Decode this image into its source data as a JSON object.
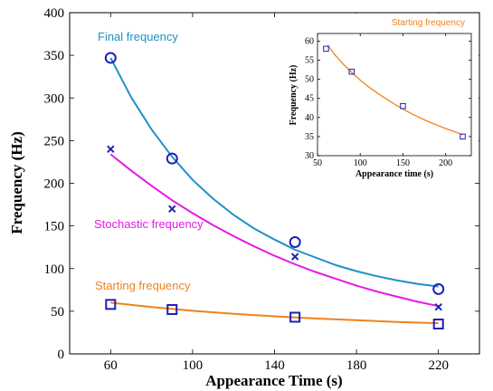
{
  "chart_data": [
    {
      "type": "line",
      "xlabel": "Appearance Time (s)",
      "ylabel": "Frequency (Hz)",
      "xlim": [
        40,
        240
      ],
      "ylim": [
        0,
        400
      ],
      "xticks": [
        60,
        100,
        140,
        180,
        220
      ],
      "yticks": [
        0,
        50,
        100,
        150,
        200,
        250,
        300,
        350,
        400
      ],
      "grid": false,
      "series": [
        {
          "name": "Final frequency",
          "color": "#1f8fc9",
          "marker": "circle",
          "points": [
            [
              60,
              347
            ],
            [
              90,
              229
            ],
            [
              150,
              131
            ],
            [
              220,
              76
            ]
          ],
          "curve": [
            [
              60,
              347
            ],
            [
              70,
              301
            ],
            [
              80,
              263
            ],
            [
              90,
              231
            ],
            [
              100,
              204
            ],
            [
              110,
              182
            ],
            [
              120,
              163
            ],
            [
              130,
              147
            ],
            [
              140,
              134
            ],
            [
              150,
              122
            ],
            [
              160,
              113
            ],
            [
              170,
              104
            ],
            [
              180,
              97
            ],
            [
              190,
              91
            ],
            [
              200,
              86
            ],
            [
              210,
              82
            ],
            [
              220,
              79
            ]
          ]
        },
        {
          "name": "Stochastic frequency",
          "color": "#e619e6",
          "marker": "x",
          "points": [
            [
              60,
              240
            ],
            [
              90,
              170
            ],
            [
              150,
              114
            ],
            [
              220,
              55
            ]
          ],
          "curve": [
            [
              60,
              234
            ],
            [
              70,
              215
            ],
            [
              80,
              197
            ],
            [
              90,
              180
            ],
            [
              100,
              165
            ],
            [
              110,
              151
            ],
            [
              120,
              138
            ],
            [
              130,
              126
            ],
            [
              140,
              115
            ],
            [
              150,
              105
            ],
            [
              160,
              96
            ],
            [
              170,
              88
            ],
            [
              180,
              80
            ],
            [
              190,
              73
            ],
            [
              200,
              67
            ],
            [
              210,
              61
            ],
            [
              220,
              56
            ]
          ]
        },
        {
          "name": "Starting frequency",
          "color": "#f0821e",
          "marker": "square",
          "points": [
            [
              60,
              58
            ],
            [
              90,
              52
            ],
            [
              150,
              43
            ],
            [
              220,
              35
            ]
          ],
          "curve": [
            [
              60,
              60
            ],
            [
              80,
              55
            ],
            [
              100,
              50.5
            ],
            [
              120,
              47
            ],
            [
              140,
              44
            ],
            [
              160,
              41.5
            ],
            [
              180,
              39.5
            ],
            [
              200,
              37.5
            ],
            [
              220,
              36
            ]
          ]
        }
      ]
    },
    {
      "type": "line",
      "title": "Starting frequency",
      "xlabel": "Appearance time (s)",
      "ylabel": "Frequency (Hz)",
      "xlim": [
        50,
        230
      ],
      "ylim": [
        30,
        62
      ],
      "xticks": [
        50,
        100,
        150,
        200
      ],
      "yticks": [
        30,
        35,
        40,
        45,
        50,
        55,
        60
      ],
      "grid": false,
      "series": [
        {
          "color": "#f0821e",
          "marker": "square",
          "points": [
            [
              60,
              58
            ],
            [
              90,
              52
            ],
            [
              150,
              43
            ],
            [
              220,
              35
            ]
          ],
          "curve": [
            [
              62,
              59
            ],
            [
              70,
              56.5
            ],
            [
              80,
              54
            ],
            [
              90,
              51.8
            ],
            [
              100,
              49.8
            ],
            [
              110,
              48
            ],
            [
              120,
              46.4
            ],
            [
              130,
              44.9
            ],
            [
              140,
              43.5
            ],
            [
              150,
              42.2
            ],
            [
              160,
              41
            ],
            [
              170,
              39.9
            ],
            [
              180,
              38.9
            ],
            [
              190,
              38
            ],
            [
              200,
              37.1
            ],
            [
              210,
              36.3
            ],
            [
              220,
              35.5
            ]
          ]
        }
      ]
    }
  ]
}
